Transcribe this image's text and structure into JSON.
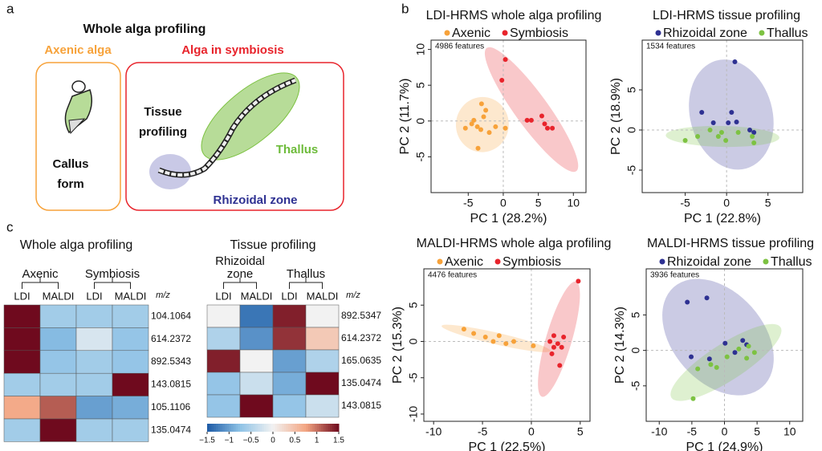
{
  "panel_labels": [
    "a",
    "b",
    "c"
  ],
  "diagram": {
    "title": "Whole alga profiling",
    "axenic_title": "Axenic alga",
    "symbiosis_title": "Alga in symbiosis",
    "callus_label": [
      "Callus",
      "form"
    ],
    "tissue_label": [
      "Tissue",
      "profiling"
    ],
    "thallus_label": "Thallus",
    "rhizoid_label": "Rhizoidal zone"
  },
  "chart_data": [
    {
      "type": "scatter",
      "title": "LDI-HRMS whole alga profiling",
      "annotation": "4986 features",
      "x_label": "PC 1 (28.2%)",
      "y_label": "PC 2 (11.7%)",
      "xlim": [
        -10.3,
        11.8
      ],
      "ylim": [
        -10,
        11.3
      ],
      "xticks": [
        -5,
        0,
        5,
        10
      ],
      "yticks": [
        -5,
        0,
        5,
        10
      ],
      "series": [
        {
          "name": "Axenic",
          "color": "#f7a23a",
          "x": [
            -3.1,
            -2.5,
            -4.2,
            -3.7,
            -5.4,
            -3.2,
            -2,
            -3.6,
            -1.1,
            0.3,
            -2.8,
            -4.5
          ],
          "values": [
            2.4,
            1.5,
            0.1,
            -0.8,
            -1,
            -1.2,
            -1.6,
            -3.8,
            -0.8,
            -1,
            0.6,
            -0.4
          ]
        },
        {
          "name": "Symbiosis",
          "color": "#e8242c",
          "x": [
            0.3,
            -0.2,
            3.4,
            4,
            5.9,
            6.3,
            7,
            5.5
          ],
          "values": [
            8.6,
            5.7,
            0.1,
            0.1,
            -0.4,
            -1,
            -1,
            0.7
          ]
        }
      ]
    },
    {
      "type": "scatter",
      "title": "LDI-HRMS tissue profiling",
      "annotation": "1534 features",
      "x_label": "PC 1 (22.8%)",
      "y_label": "PC 2 (18.9%)",
      "xlim": [
        -10.2,
        9.2
      ],
      "ylim": [
        -7.8,
        11.2
      ],
      "xticks": [
        -5,
        0,
        5
      ],
      "yticks": [
        -5,
        0,
        5
      ],
      "series": [
        {
          "name": "Rhizoidal zone",
          "color": "#2e3192",
          "x": [
            1,
            -3,
            -1.6,
            0.2,
            0.6,
            2.8,
            3.3,
            1.2
          ],
          "values": [
            8.5,
            2.2,
            0.9,
            0.9,
            2.2,
            0,
            -0.3,
            1
          ]
        },
        {
          "name": "Thallus",
          "color": "#7dc242",
          "x": [
            -5,
            -3.5,
            -1,
            -0.6,
            -0.1,
            1.4,
            3.1,
            3.3,
            -2
          ],
          "values": [
            -1.3,
            -0.8,
            -0.8,
            -0.3,
            -1.3,
            -0.3,
            -0.8,
            -1.6,
            0
          ]
        }
      ]
    },
    {
      "type": "scatter",
      "title": "MALDI-HRMS whole alga profiling",
      "annotation": "4476 features",
      "x_label": "PC 1 (22.5%)",
      "y_label": "PC 2 (15.3%)",
      "xlim": [
        -11,
        6
      ],
      "ylim": [
        -11,
        10
      ],
      "xticks": [
        -10,
        -5,
        0,
        5
      ],
      "yticks": [
        -10,
        -5,
        0,
        5
      ],
      "series": [
        {
          "name": "Axenic",
          "color": "#f7a23a",
          "x": [
            -6.9,
            -5.9,
            -4.7,
            -3.9,
            -3.3,
            -2.6,
            -1.8,
            0.2
          ],
          "values": [
            1.7,
            1.1,
            0.6,
            0,
            0.8,
            -0.3,
            0,
            -0.6
          ]
        },
        {
          "name": "Symbiosis",
          "color": "#e8242c",
          "x": [
            4.8,
            1.9,
            2.3,
            2.7,
            3.1,
            2.1,
            2.9,
            2.3,
            3.3
          ],
          "values": [
            8.3,
            0,
            -0.8,
            -0.3,
            -0.8,
            -1.7,
            -3.3,
            0.8,
            0.6
          ]
        }
      ]
    },
    {
      "type": "scatter",
      "title": "MALDI-HRMS tissue profiling",
      "annotation": "3936 features",
      "x_label": "PC 1 (24.9%)",
      "y_label": "PC 2 (14.3%)",
      "xlim": [
        -12,
        12
      ],
      "ylim": [
        -10,
        11.5
      ],
      "xticks": [
        -10,
        -5,
        0,
        5,
        10
      ],
      "yticks": [
        -5,
        0,
        5
      ],
      "series": [
        {
          "name": "Rhizoidal zone",
          "color": "#2e3192",
          "x": [
            -5.7,
            -2.7,
            -5.1,
            -2.3,
            0.1,
            2.8,
            3.4,
            1.6
          ],
          "values": [
            6.8,
            7.4,
            -0.9,
            -1.2,
            1,
            1.4,
            0.8,
            -0.3
          ]
        },
        {
          "name": "Thallus",
          "color": "#7dc242",
          "x": [
            -4.8,
            -4.1,
            -2.1,
            -1.2,
            0.4,
            2.2,
            3.7,
            4.6,
            3.4
          ],
          "values": [
            -6.8,
            -2.6,
            -2,
            -2.4,
            -0.9,
            0.2,
            0.6,
            -0.3,
            -1.1
          ]
        }
      ]
    },
    {
      "type": "heatmap",
      "title": "Whole alga profiling",
      "groups": [
        [
          "Axenic"
        ],
        [
          "Symbiosis"
        ]
      ],
      "columns": [
        "LDI",
        "MALDI",
        "LDI",
        "MALDI"
      ],
      "row_axis_label": "m/z",
      "rows": [
        "104.1064",
        "614.2372",
        "892.5343",
        "143.0815",
        "105.1106",
        "135.0474"
      ],
      "values": [
        [
          1.5,
          -0.6,
          -0.6,
          -0.6
        ],
        [
          1.5,
          -0.8,
          -0.2,
          -0.7
        ],
        [
          1.5,
          -0.7,
          -0.6,
          -0.7
        ],
        [
          -0.6,
          -0.6,
          -0.6,
          1.5
        ],
        [
          0.7,
          1.1,
          -1,
          -0.9
        ],
        [
          -0.6,
          1.5,
          -0.6,
          -0.6
        ]
      ],
      "clim": [
        -1.5,
        1.5
      ],
      "colors": [
        "#1c5aa5",
        "#8ec2e6",
        "#f2f2f2",
        "#f3a582",
        "#6f0a1e"
      ]
    },
    {
      "type": "heatmap",
      "title": "Tissue profiling",
      "groups": [
        [
          "Rhizoidal",
          "zone"
        ],
        [
          "Thallus"
        ]
      ],
      "columns": [
        "LDI",
        "MALDI",
        "LDI",
        "MALDI"
      ],
      "row_axis_label": "m/z",
      "rows": [
        "892.5347",
        "614.2372",
        "165.0635",
        "135.0474",
        "143.0815"
      ],
      "values": [
        [
          0,
          -1.3,
          1.4,
          0
        ],
        [
          -0.5,
          -1.1,
          1.3,
          0.4
        ],
        [
          1.4,
          0,
          -1,
          -0.5
        ],
        [
          -0.7,
          -0.3,
          -0.9,
          1.5
        ],
        [
          -0.7,
          1.5,
          -0.7,
          -0.3
        ]
      ],
      "clim": [
        -1.5,
        1.5
      ],
      "colors": [
        "#1c5aa5",
        "#8ec2e6",
        "#f2f2f2",
        "#f3a582",
        "#6f0a1e"
      ],
      "colorbar_ticks": [
        {
          "value": -1.5,
          "label": "−1.5"
        },
        {
          "value": -1,
          "label": "−1"
        },
        {
          "value": -0.5,
          "label": "−0.5"
        },
        0,
        0.5,
        1,
        1.5
      ]
    }
  ]
}
